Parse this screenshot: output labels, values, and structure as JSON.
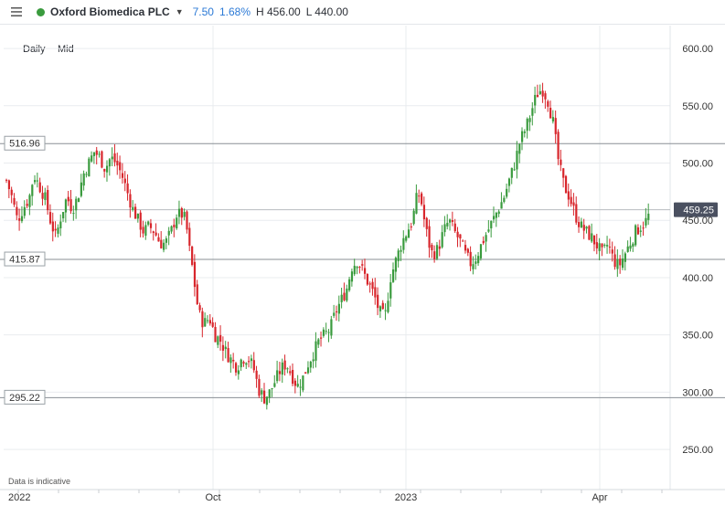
{
  "header": {
    "instrument": "Oxford Biomedica PLC",
    "change_abs": "7.50",
    "change_pct": "1.68%",
    "high": "H 456.00",
    "low": "L 440.00",
    "status_color": "#3a9b3e"
  },
  "intervals": [
    "Daily",
    "Mid"
  ],
  "footnote": "Data is indicative",
  "colors": {
    "up": "#3a9b3e",
    "down": "#d8262c",
    "grid": "#e9ecef"
  },
  "chart_data": {
    "type": "candlestick",
    "ylim": [
      215,
      620
    ],
    "y_ticks": [
      "600.00",
      "550.00",
      "500.00",
      "450.00",
      "400.00",
      "350.00",
      "300.00",
      "250.00"
    ],
    "x_ticks": [
      "2022",
      "Oct",
      "2023",
      "Apr"
    ],
    "horizontal_lines": [
      {
        "label": "516.96",
        "value": 516.96
      },
      {
        "label": "415.87",
        "value": 415.87
      },
      {
        "label": "295.22",
        "value": 295.22
      }
    ],
    "last_price": {
      "label": "459.25",
      "value": 459.25
    },
    "grid": true,
    "close_path": [
      [
        0,
        485
      ],
      [
        6,
        470
      ],
      [
        12,
        450
      ],
      [
        18,
        460
      ],
      [
        25,
        470
      ],
      [
        30,
        490
      ],
      [
        36,
        480
      ],
      [
        42,
        470
      ],
      [
        48,
        450
      ],
      [
        54,
        435
      ],
      [
        60,
        455
      ],
      [
        66,
        470
      ],
      [
        72,
        460
      ],
      [
        78,
        470
      ],
      [
        84,
        490
      ],
      [
        90,
        500
      ],
      [
        96,
        510
      ],
      [
        102,
        505
      ],
      [
        108,
        495
      ],
      [
        114,
        505
      ],
      [
        120,
        500
      ],
      [
        126,
        490
      ],
      [
        132,
        475
      ],
      [
        138,
        460
      ],
      [
        144,
        450
      ],
      [
        150,
        440
      ],
      [
        156,
        445
      ],
      [
        162,
        440
      ],
      [
        168,
        430
      ],
      [
        174,
        430
      ],
      [
        180,
        440
      ],
      [
        186,
        455
      ],
      [
        192,
        455
      ],
      [
        196,
        450
      ],
      [
        200,
        425
      ],
      [
        204,
        405
      ],
      [
        208,
        380
      ],
      [
        212,
        365
      ],
      [
        216,
        360
      ],
      [
        222,
        365
      ],
      [
        228,
        350
      ],
      [
        234,
        345
      ],
      [
        240,
        335
      ],
      [
        246,
        328
      ],
      [
        252,
        322
      ],
      [
        258,
        330
      ],
      [
        264,
        330
      ],
      [
        270,
        322
      ],
      [
        276,
        302
      ],
      [
        282,
        295
      ],
      [
        288,
        300
      ],
      [
        294,
        310
      ],
      [
        300,
        320
      ],
      [
        306,
        325
      ],
      [
        312,
        315
      ],
      [
        318,
        305
      ],
      [
        324,
        312
      ],
      [
        330,
        325
      ],
      [
        336,
        335
      ],
      [
        342,
        345
      ],
      [
        348,
        350
      ],
      [
        354,
        355
      ],
      [
        360,
        370
      ],
      [
        366,
        380
      ],
      [
        372,
        390
      ],
      [
        378,
        410
      ],
      [
        384,
        415
      ],
      [
        390,
        405
      ],
      [
        396,
        395
      ],
      [
        402,
        385
      ],
      [
        408,
        370
      ],
      [
        414,
        365
      ],
      [
        420,
        400
      ],
      [
        426,
        415
      ],
      [
        432,
        430
      ],
      [
        438,
        440
      ],
      [
        444,
        450
      ],
      [
        450,
        475
      ],
      [
        454,
        465
      ],
      [
        458,
        445
      ],
      [
        462,
        430
      ],
      [
        466,
        420
      ],
      [
        472,
        425
      ],
      [
        478,
        440
      ],
      [
        484,
        450
      ],
      [
        490,
        440
      ],
      [
        496,
        432
      ],
      [
        502,
        420
      ],
      [
        508,
        412
      ],
      [
        514,
        418
      ],
      [
        520,
        430
      ],
      [
        526,
        440
      ],
      [
        532,
        450
      ],
      [
        538,
        460
      ],
      [
        544,
        470
      ],
      [
        550,
        485
      ],
      [
        556,
        500
      ],
      [
        562,
        520
      ],
      [
        568,
        530
      ],
      [
        574,
        545
      ],
      [
        580,
        560
      ],
      [
        586,
        565
      ],
      [
        592,
        555
      ],
      [
        598,
        535
      ],
      [
        604,
        500
      ],
      [
        610,
        480
      ],
      [
        616,
        470
      ],
      [
        622,
        455
      ],
      [
        628,
        445
      ],
      [
        634,
        440
      ],
      [
        640,
        435
      ],
      [
        646,
        428
      ],
      [
        652,
        420
      ],
      [
        658,
        430
      ],
      [
        664,
        415
      ],
      [
        670,
        410
      ],
      [
        676,
        420
      ],
      [
        682,
        430
      ],
      [
        688,
        440
      ],
      [
        694,
        445
      ],
      [
        700,
        450
      ],
      [
        705,
        459.25
      ]
    ]
  }
}
